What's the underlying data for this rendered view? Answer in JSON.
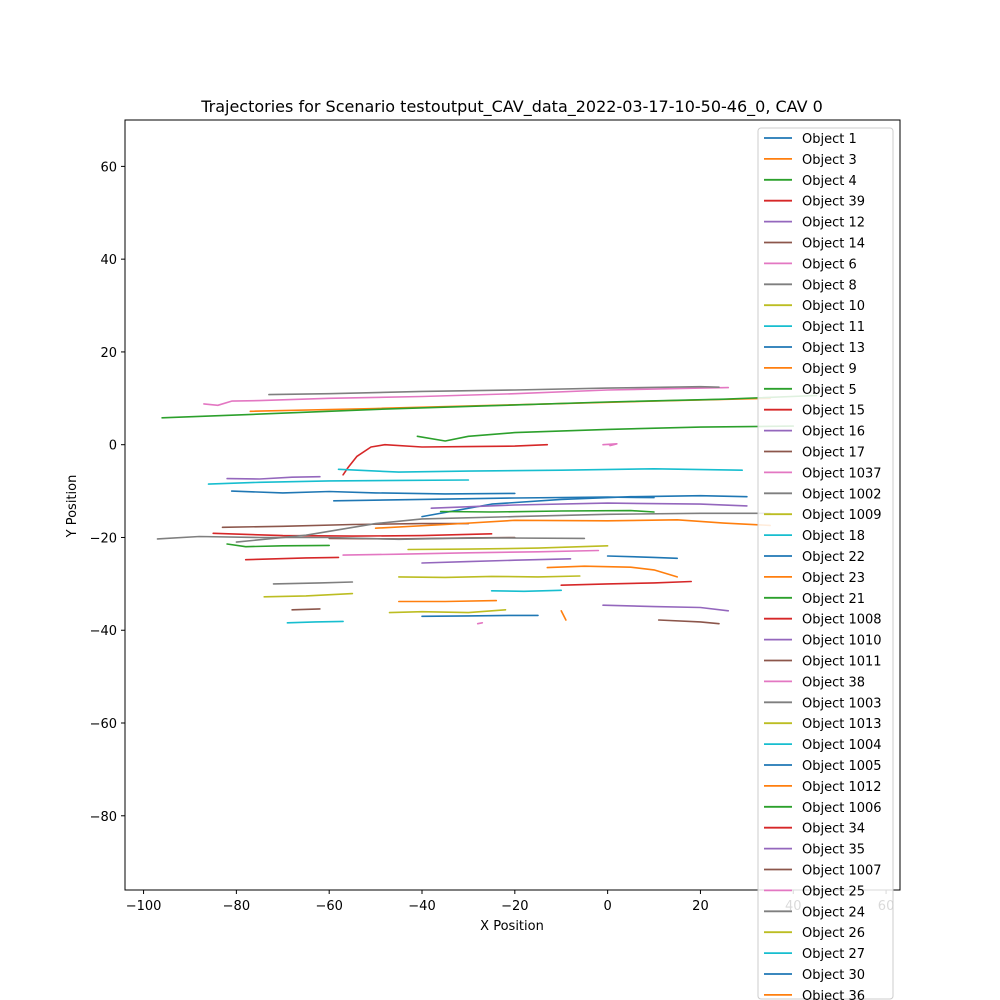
{
  "chart_data": {
    "type": "line",
    "title": "Trajectories for Scenario testoutput_CAV_data_2022-03-17-10-50-46_0, CAV 0",
    "xlabel": "X Position",
    "ylabel": "Y Position",
    "xlim": [
      -104,
      63
    ],
    "ylim": [
      -96,
      70
    ],
    "x_ticks": [
      -100,
      -80,
      -60,
      -40,
      -20,
      0,
      20,
      40,
      60
    ],
    "y_ticks": [
      -80,
      -60,
      -40,
      -20,
      0,
      20,
      40,
      60
    ],
    "x_tick_labels": [
      "−100",
      "−80",
      "−60",
      "−40",
      "−20",
      "0",
      "20",
      "40",
      "60"
    ],
    "y_tick_labels": [
      "−80",
      "−60",
      "−40",
      "−20",
      "0",
      "20",
      "40",
      "60"
    ],
    "grid": false,
    "legend_position": "top-right",
    "series": [
      {
        "name": "Object 1",
        "color": "#1f77b4",
        "points": [
          [
            -40,
            -15.5
          ],
          [
            -25,
            -12.8
          ],
          [
            -10,
            -11.8
          ],
          [
            5,
            -11.2
          ],
          [
            20,
            -11.0
          ],
          [
            30,
            -11.2
          ]
        ]
      },
      {
        "name": "Object 3",
        "color": "#ff7f0e",
        "points": [
          [
            -77,
            7.2
          ],
          [
            -50,
            7.8
          ],
          [
            -20,
            8.6
          ],
          [
            10,
            9.4
          ],
          [
            35,
            10.0
          ]
        ]
      },
      {
        "name": "Object 4",
        "color": "#2ca02c",
        "points": [
          [
            -96,
            5.8
          ],
          [
            -75,
            6.6
          ],
          [
            -50,
            7.6
          ],
          [
            -25,
            8.4
          ],
          [
            0,
            9.2
          ],
          [
            25,
            9.8
          ],
          [
            45,
            10.6
          ]
        ]
      },
      {
        "name": "Object 39",
        "color": "#d62728",
        "points": [
          [
            -57,
            -6.5
          ],
          [
            -56,
            -5.0
          ],
          [
            -54,
            -2.5
          ],
          [
            -51,
            -0.5
          ],
          [
            -48,
            0.0
          ],
          [
            -40,
            -0.5
          ],
          [
            -30,
            -0.4
          ],
          [
            -20,
            -0.3
          ],
          [
            -13,
            0.0
          ]
        ]
      },
      {
        "name": "Object 12",
        "color": "#9467bd",
        "points": [
          [
            -82,
            -7.3
          ],
          [
            -75,
            -7.4
          ],
          [
            -68,
            -7.0
          ],
          [
            -62,
            -6.9
          ]
        ]
      },
      {
        "name": "Object 14",
        "color": "#8c564b",
        "points": [
          [
            -83,
            -17.8
          ],
          [
            -70,
            -17.6
          ],
          [
            -55,
            -17.2
          ],
          [
            -40,
            -17.0
          ],
          [
            -30,
            -17.0
          ]
        ]
      },
      {
        "name": "Object 6",
        "color": "#e377c2",
        "points": [
          [
            -87,
            8.8
          ],
          [
            -84,
            8.5
          ],
          [
            -81,
            9.4
          ],
          [
            -75,
            9.5
          ],
          [
            -60,
            10.0
          ],
          [
            -40,
            10.4
          ],
          [
            -20,
            11.0
          ],
          [
            0,
            11.8
          ],
          [
            20,
            12.2
          ],
          [
            26,
            12.3
          ]
        ]
      },
      {
        "name": "Object 8",
        "color": "#7f7f7f",
        "points": [
          [
            -73,
            10.8
          ],
          [
            -60,
            11.0
          ],
          [
            -40,
            11.5
          ],
          [
            -20,
            11.8
          ],
          [
            0,
            12.2
          ],
          [
            20,
            12.5
          ],
          [
            24,
            12.4
          ]
        ]
      },
      {
        "name": "Object 10",
        "color": "#bcbd22",
        "points": [
          [
            -74,
            -32.8
          ],
          [
            -65,
            -32.6
          ],
          [
            -55,
            -32.1
          ]
        ]
      },
      {
        "name": "Object 11",
        "color": "#17becf",
        "points": [
          [
            -86,
            -8.5
          ],
          [
            -75,
            -8.1
          ],
          [
            -60,
            -7.8
          ],
          [
            -45,
            -7.7
          ],
          [
            -30,
            -7.6
          ]
        ]
      },
      {
        "name": "Object 13",
        "color": "#1f77b4",
        "points": [
          [
            -59,
            -12.1
          ],
          [
            -40,
            -11.8
          ],
          [
            -20,
            -11.5
          ],
          [
            0,
            -11.3
          ],
          [
            10,
            -11.4
          ]
        ]
      },
      {
        "name": "Object 9",
        "color": "#ff7f0e",
        "points": [
          [
            -45,
            -33.8
          ],
          [
            -35,
            -33.8
          ],
          [
            -24,
            -33.6
          ]
        ]
      },
      {
        "name": "Object 5",
        "color": "#2ca02c",
        "points": [
          [
            -41,
            1.8
          ],
          [
            -35,
            0.8
          ],
          [
            -30,
            1.8
          ],
          [
            -20,
            2.6
          ],
          [
            0,
            3.3
          ],
          [
            20,
            3.8
          ],
          [
            40,
            4.0
          ]
        ]
      },
      {
        "name": "Object 15",
        "color": "#d62728",
        "points": [
          [
            -85,
            -19.1
          ],
          [
            -70,
            -19.6
          ],
          [
            -55,
            -19.7
          ],
          [
            -40,
            -19.6
          ],
          [
            -25,
            -19.2
          ]
        ]
      },
      {
        "name": "Object 16",
        "color": "#9467bd",
        "points": [
          [
            -38,
            -13.7
          ],
          [
            -20,
            -13.0
          ],
          [
            0,
            -12.6
          ],
          [
            20,
            -12.8
          ],
          [
            30,
            -13.2
          ]
        ]
      },
      {
        "name": "Object 17",
        "color": "#8c564b",
        "points": [
          [
            -60,
            -20.2
          ],
          [
            -45,
            -20.3
          ],
          [
            -30,
            -20.1
          ],
          [
            -20,
            -20.0
          ]
        ]
      },
      {
        "name": "Object 1037",
        "color": "#e377c2",
        "points": [
          [
            -1,
            0.0
          ],
          [
            2,
            0.2
          ],
          [
            0.5,
            -0.2
          ]
        ]
      },
      {
        "name": "Object 1002",
        "color": "#7f7f7f",
        "points": [
          [
            -97,
            -20.3
          ],
          [
            -88,
            -19.8
          ],
          [
            -75,
            -20.0
          ],
          [
            -60,
            -20.0
          ],
          [
            -45,
            -20.4
          ],
          [
            -35,
            -20.2
          ],
          [
            -25,
            -20.1
          ],
          [
            -5,
            -20.2
          ]
        ]
      },
      {
        "name": "Object 1009",
        "color": "#bcbd22",
        "points": [
          [
            -45,
            -28.5
          ],
          [
            -35,
            -28.6
          ],
          [
            -25,
            -28.4
          ],
          [
            -15,
            -28.5
          ],
          [
            -6,
            -28.3
          ]
        ]
      },
      {
        "name": "Object 18",
        "color": "#17becf",
        "points": [
          [
            -58,
            -5.3
          ],
          [
            -45,
            -5.9
          ],
          [
            -30,
            -5.7
          ],
          [
            -10,
            -5.5
          ],
          [
            10,
            -5.2
          ],
          [
            29,
            -5.5
          ]
        ]
      },
      {
        "name": "Object 22",
        "color": "#1f77b4",
        "points": [
          [
            -81,
            -10.0
          ],
          [
            -70,
            -10.4
          ],
          [
            -60,
            -10.1
          ],
          [
            -50,
            -10.4
          ],
          [
            -35,
            -10.6
          ],
          [
            -20,
            -10.5
          ]
        ]
      },
      {
        "name": "Object 23",
        "color": "#ff7f0e",
        "points": [
          [
            -50,
            -18.0
          ],
          [
            -35,
            -17.2
          ],
          [
            -20,
            -16.3
          ],
          [
            0,
            -16.4
          ],
          [
            15,
            -16.2
          ],
          [
            25,
            -16.9
          ],
          [
            35,
            -17.4
          ]
        ]
      },
      {
        "name": "Object 21",
        "color": "#2ca02c",
        "points": [
          [
            -82,
            -21.4
          ],
          [
            -78,
            -22.0
          ],
          [
            -70,
            -21.8
          ],
          [
            -60,
            -21.7
          ]
        ]
      },
      {
        "name": "Object 1008",
        "color": "#d62728",
        "points": [
          [
            -78,
            -24.8
          ],
          [
            -65,
            -24.4
          ],
          [
            -58,
            -24.3
          ]
        ]
      },
      {
        "name": "Object 1010",
        "color": "#9467bd",
        "points": [
          [
            -40,
            -25.5
          ],
          [
            -30,
            -25.2
          ],
          [
            -20,
            -24.9
          ],
          [
            -8,
            -24.6
          ]
        ]
      },
      {
        "name": "Object 1011",
        "color": "#8c564b",
        "points": [
          [
            -68,
            -35.6
          ],
          [
            -62,
            -35.4
          ]
        ]
      },
      {
        "name": "Object 38",
        "color": "#e377c2",
        "points": [
          [
            -57,
            -23.8
          ],
          [
            -45,
            -23.6
          ],
          [
            -30,
            -23.3
          ],
          [
            -15,
            -23.1
          ],
          [
            -2,
            -22.8
          ]
        ]
      },
      {
        "name": "Object 1003",
        "color": "#7f7f7f",
        "points": [
          [
            -72,
            -30.0
          ],
          [
            -62,
            -29.8
          ],
          [
            -55,
            -29.6
          ]
        ]
      },
      {
        "name": "Object 1013",
        "color": "#bcbd22",
        "points": [
          [
            -43,
            -22.6
          ],
          [
            -30,
            -22.5
          ],
          [
            -15,
            -22.3
          ],
          [
            0,
            -21.8
          ]
        ]
      },
      {
        "name": "Object 1004",
        "color": "#17becf",
        "points": [
          [
            -69,
            -38.4
          ],
          [
            -63,
            -38.2
          ],
          [
            -57,
            -38.1
          ]
        ]
      },
      {
        "name": "Object 1005",
        "color": "#1f77b4",
        "points": [
          [
            -40,
            -37.0
          ],
          [
            -30,
            -36.9
          ],
          [
            -20,
            -36.8
          ],
          [
            -15,
            -36.8
          ]
        ]
      },
      {
        "name": "Object 1012",
        "color": "#ff7f0e",
        "points": [
          [
            -10,
            -35.8
          ],
          [
            -9,
            -37.8
          ]
        ]
      },
      {
        "name": "Object 1006",
        "color": "#2ca02c",
        "points": [
          [
            -36,
            -14.4
          ],
          [
            -25,
            -14.5
          ],
          [
            -10,
            -14.3
          ],
          [
            5,
            -14.2
          ],
          [
            10,
            -14.5
          ]
        ]
      },
      {
        "name": "Object 34",
        "color": "#d62728",
        "points": [
          [
            -10,
            -30.3
          ],
          [
            0,
            -30.0
          ],
          [
            10,
            -29.8
          ],
          [
            18,
            -29.5
          ]
        ]
      },
      {
        "name": "Object 35",
        "color": "#9467bd",
        "points": [
          [
            -1,
            -34.6
          ],
          [
            10,
            -34.9
          ],
          [
            20,
            -35.1
          ],
          [
            26,
            -35.8
          ]
        ]
      },
      {
        "name": "Object 1007",
        "color": "#8c564b",
        "points": [
          [
            11,
            -37.8
          ],
          [
            20,
            -38.2
          ],
          [
            24,
            -38.6
          ]
        ]
      },
      {
        "name": "Object 25",
        "color": "#e377c2",
        "points": [
          [
            -28,
            -38.6
          ],
          [
            -27,
            -38.4
          ]
        ]
      },
      {
        "name": "Object 24",
        "color": "#7f7f7f",
        "points": [
          [
            -80,
            -21.0
          ],
          [
            -65,
            -19.5
          ],
          [
            -50,
            -17.0
          ],
          [
            -40,
            -16.0
          ],
          [
            -20,
            -15.5
          ],
          [
            0,
            -15.0
          ],
          [
            20,
            -14.8
          ],
          [
            35,
            -14.8
          ]
        ]
      },
      {
        "name": "Object 26",
        "color": "#bcbd22",
        "points": [
          [
            -47,
            -36.2
          ],
          [
            -40,
            -36.0
          ],
          [
            -30,
            -36.2
          ],
          [
            -22,
            -35.6
          ]
        ]
      },
      {
        "name": "Object 27",
        "color": "#17becf",
        "points": [
          [
            -25,
            -31.5
          ],
          [
            -18,
            -31.6
          ],
          [
            -10,
            -31.4
          ]
        ]
      },
      {
        "name": "Object 30",
        "color": "#1f77b4",
        "points": [
          [
            0,
            -24.0
          ],
          [
            10,
            -24.3
          ],
          [
            15,
            -24.5
          ]
        ]
      },
      {
        "name": "Object 36",
        "color": "#ff7f0e",
        "points": [
          [
            -13,
            -26.5
          ],
          [
            -5,
            -26.2
          ],
          [
            5,
            -26.4
          ],
          [
            10,
            -27.0
          ],
          [
            15,
            -28.5
          ]
        ]
      }
    ]
  }
}
